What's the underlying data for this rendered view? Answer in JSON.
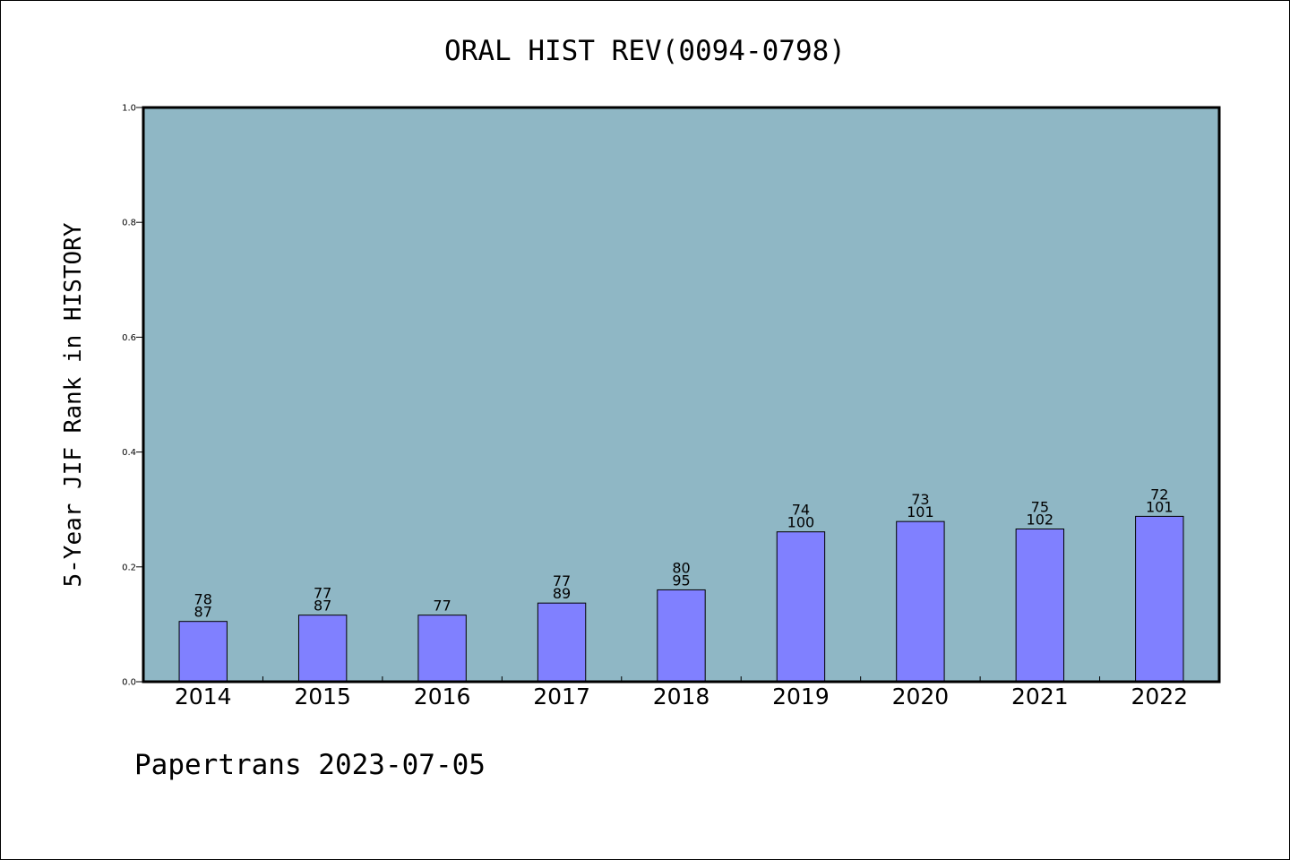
{
  "chart_data": {
    "type": "bar",
    "title": "ORAL HIST REV(0094-0798)",
    "ylabel": "5-Year JIF Rank in HISTORY",
    "xlabel": "",
    "ylim": [
      0,
      1.0
    ],
    "yticks": [
      "0.0",
      "0.2",
      "0.4",
      "0.6",
      "0.8",
      "1.0"
    ],
    "categories": [
      "2014",
      "2015",
      "2016",
      "2017",
      "2018",
      "2019",
      "2020",
      "2021",
      "2022"
    ],
    "values": [
      0.105,
      0.116,
      0.116,
      0.137,
      0.16,
      0.261,
      0.279,
      0.266,
      0.288
    ],
    "bar_labels": [
      [
        "78",
        "87"
      ],
      [
        "77",
        "87"
      ],
      [
        "77"
      ],
      [
        "77",
        "89"
      ],
      [
        "80",
        "95"
      ],
      [
        "74",
        "100"
      ],
      [
        "73",
        "101"
      ],
      [
        "75",
        "102"
      ],
      [
        "72",
        "101"
      ]
    ],
    "grid": false,
    "colors": {
      "plot_background": "#8fb7c5",
      "bar_fill": "#8080ff",
      "bar_stroke": "#000000"
    }
  },
  "footer": "Papertrans 2023-07-05"
}
